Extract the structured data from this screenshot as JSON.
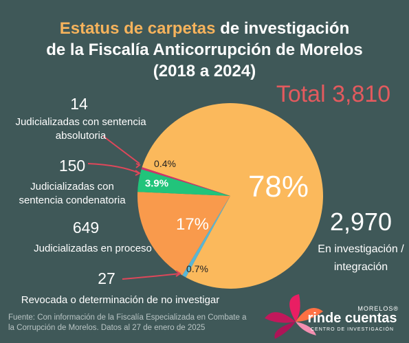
{
  "chart_data": {
    "type": "pie",
    "title": {
      "highlight": "Estatus de carpetas",
      "line1": "de investigación",
      "line2": "de la Fiscalía Anticorrupción de Morelos"
    },
    "subtitle": "(2018 a 2024)",
    "total_label": "Total",
    "total": {
      "value": 3810,
      "label": "3,810"
    },
    "categories": [
      "En investigación / integración",
      "Revocada o determinación de no investigar",
      "Judicializadas en proceso",
      "Judicializadas con sentencia condenatoria",
      "Judicializadas con sentencia absolutoria"
    ],
    "values": [
      2970,
      27,
      649,
      150,
      14
    ],
    "value_labels": [
      "2,970",
      "27",
      "649",
      "150",
      "14"
    ],
    "percents": [
      78,
      0.7,
      17,
      3.9,
      0.4
    ],
    "percent_labels": [
      "78%",
      "0.7%",
      "17%",
      "3.9%",
      "0.4%"
    ],
    "colors": [
      "#fbb95c",
      "#5ab6d4",
      "#f99a4c",
      "#21c47b",
      "#d3336a"
    ],
    "source": "Fuente: Con información de la Fiscalía Especializada en Combate a la Corrupción de Morelos. Datos al 27 de enero de 2025",
    "logo": {
      "top": "MORELOS®",
      "name": "rinde cuentas",
      "sub": "CENTRO DE INVESTIGACIÓN"
    }
  }
}
